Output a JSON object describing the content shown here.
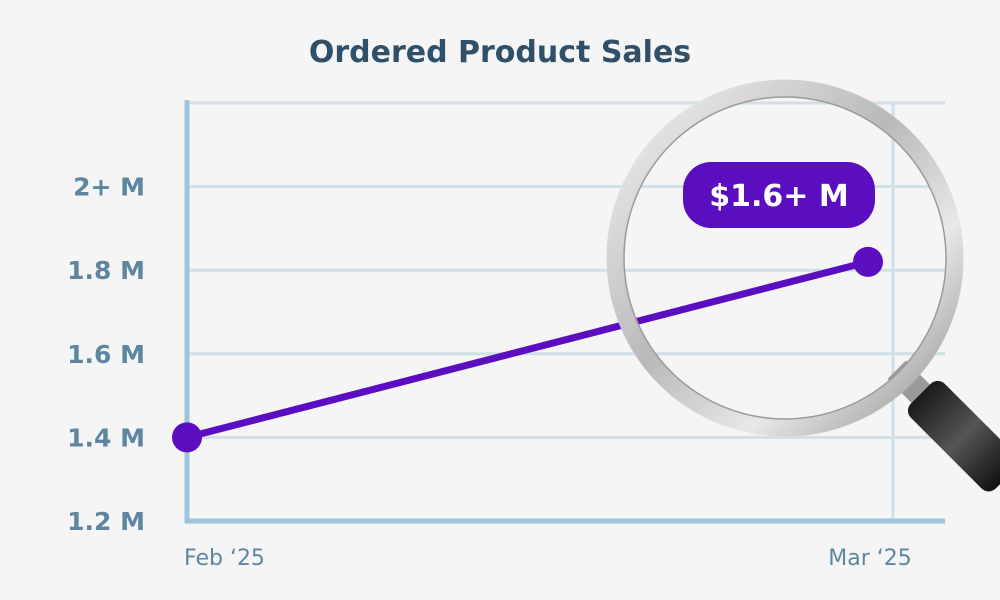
{
  "chart_data": {
    "type": "line",
    "title": "Ordered Product Sales",
    "xlabel": "",
    "ylabel": "",
    "categories": [
      "Feb ‘25",
      "Mar ‘25"
    ],
    "series": [
      {
        "name": "Ordered Product Sales",
        "values": [
          1.4,
          1.82
        ]
      }
    ],
    "yticks": [
      {
        "value": 1.2,
        "label": "1.2 M"
      },
      {
        "value": 1.4,
        "label": "1.4 M"
      },
      {
        "value": 1.6,
        "label": "1.6 M"
      },
      {
        "value": 1.8,
        "label": "1.8 M"
      },
      {
        "value": 2.0,
        "label": "2+ M"
      }
    ],
    "ylim": [
      1.2,
      2.2
    ],
    "grid": true,
    "annotation": "$1.6+ M",
    "colors": {
      "line": "#5b0ebf",
      "axis": "#9fc3dc",
      "grid": "#cfe0e6",
      "text": "#5d86a0",
      "title": "#2f5068"
    }
  }
}
